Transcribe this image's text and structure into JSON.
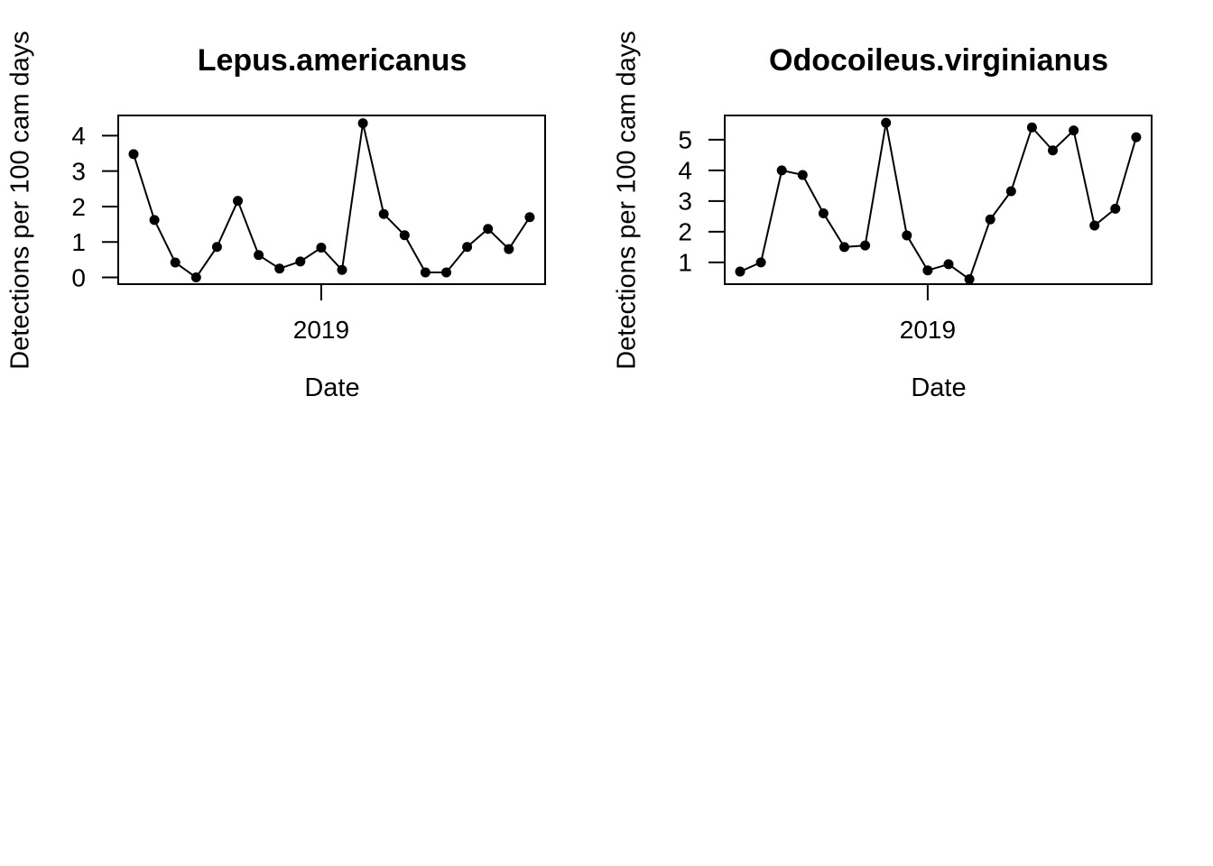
{
  "canvas": {
    "background_color": "#ffffff",
    "foreground_color": "#000000"
  },
  "chart_data": [
    {
      "type": "line",
      "title": "Lepus.americanus",
      "xlabel": "Date",
      "ylabel": "Detections per 100 cam days",
      "n_points": 20,
      "values": [
        3.48,
        1.62,
        0.42,
        0.0,
        0.86,
        2.16,
        0.63,
        0.25,
        0.45,
        0.84,
        0.21,
        4.35,
        1.79,
        1.19,
        0.14,
        0.14,
        0.86,
        1.37,
        0.8,
        1.7
      ],
      "yticks": [
        0,
        1,
        2,
        3,
        4
      ],
      "ylim": [
        -0.19,
        4.57
      ],
      "x_tick_label": "2019",
      "x_tick_point_index": 9,
      "grid": false,
      "legend": "none",
      "marker": "filled-circle",
      "line_color": "#000000",
      "marker_color": "#000000"
    },
    {
      "type": "line",
      "title": "Odocoileus.virginianus",
      "xlabel": "Date",
      "ylabel": "Detections per 100 cam days",
      "n_points": 20,
      "values": [
        0.7,
        1.0,
        4.0,
        3.85,
        2.6,
        1.5,
        1.55,
        5.55,
        1.88,
        0.74,
        0.94,
        0.45,
        2.4,
        3.32,
        5.4,
        4.65,
        5.3,
        2.2,
        2.75,
        5.08
      ],
      "yticks": [
        1,
        2,
        3,
        4,
        5
      ],
      "ylim": [
        0.29,
        5.79
      ],
      "x_tick_label": "2019",
      "x_tick_point_index": 9,
      "grid": false,
      "legend": "none",
      "marker": "filled-circle",
      "line_color": "#000000",
      "marker_color": "#000000"
    }
  ]
}
